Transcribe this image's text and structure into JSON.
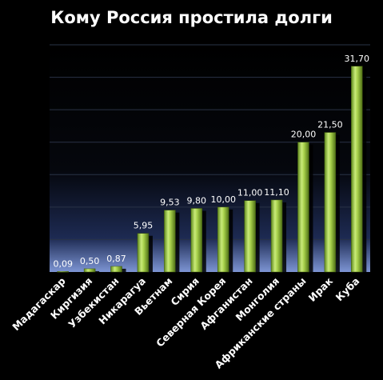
{
  "chart_data": {
    "type": "bar",
    "title": "Кому Россия простила долги",
    "xlabel": "",
    "ylabel": "",
    "ylim": [
      0,
      35
    ],
    "grid": true,
    "categories": [
      "Мадагаскар",
      "Киргизия",
      "Узбекистан",
      "Никарагуа",
      "Вьетнам",
      "Сирия",
      "Северная Корея",
      "Афганистан",
      "Монголия",
      "Африканские страны",
      "Ирак",
      "Куба"
    ],
    "values": [
      0.09,
      0.5,
      0.87,
      5.95,
      9.53,
      9.8,
      10.0,
      11.0,
      11.1,
      20.0,
      21.5,
      31.7
    ],
    "value_labels": [
      "0,09",
      "0,50",
      "0,87",
      "5,95",
      "9,53",
      "9,80",
      "10,00",
      "11,00",
      "11,10",
      "20,00",
      "21,50",
      "31,70"
    ],
    "colors": {
      "bar": "#9bc53d",
      "bar_light": "#d4ef8a",
      "bar_dark": "#5a7a1a",
      "background_top": "#000000",
      "background_bottom": "#6f86c8",
      "grid": "#2a3346"
    }
  }
}
